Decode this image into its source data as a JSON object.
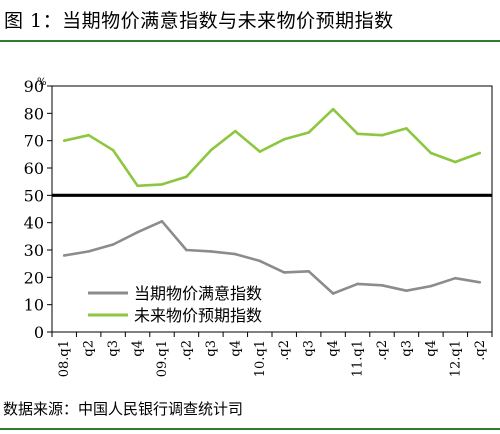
{
  "title": "图 1：当期物价满意指数与未来物价预期指数",
  "source": "数据来源：中国人民银行调查统计司",
  "chart_data": {
    "type": "line",
    "unit": "%",
    "ylim": [
      0,
      90
    ],
    "yticks": [
      0,
      10,
      20,
      30,
      40,
      50,
      60,
      70,
      80,
      90
    ],
    "reference_line": 50,
    "categories": [
      "08.q1",
      "q2",
      "q3",
      "q4",
      "09.q1",
      "q2",
      "q3",
      "q4",
      "10.q1",
      "q2",
      "q3",
      "q4",
      "11.q1",
      "q2",
      "q3",
      "q4",
      "12.q1",
      "q2"
    ],
    "tick_labels": [
      "08.q1",
      "q2",
      "q3",
      "q4",
      "09.q1",
      ".q2",
      "q3",
      "q4",
      "10.q1",
      ".q2",
      "q3",
      "q4",
      "11.q1",
      ".q2",
      "q3",
      "q4",
      "12.q1",
      ".q2"
    ],
    "legend_position": "center-left",
    "series": [
      {
        "name": "当期物价满意指数",
        "color": "#8c8c8c",
        "values": [
          28,
          29.5,
          32,
          36.5,
          40.5,
          30,
          29.5,
          28.5,
          26,
          21.8,
          22.2,
          14.1,
          17.6,
          17.1,
          15.1,
          16.8,
          19.7,
          18.2
        ]
      },
      {
        "name": "未来物价预期指数",
        "color": "#8dc63f",
        "values": [
          70,
          72,
          66.5,
          53.5,
          54,
          56.8,
          66.5,
          73.5,
          66,
          70.5,
          73,
          81.5,
          72.5,
          72,
          74.5,
          65.5,
          62.2,
          65.5
        ]
      }
    ]
  }
}
